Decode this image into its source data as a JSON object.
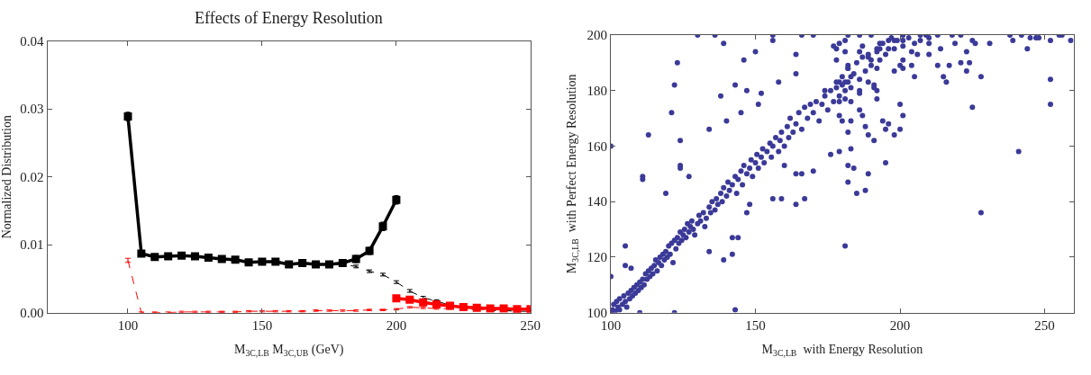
{
  "chart_data": [
    {
      "type": "line",
      "title": "Effects of Energy Resolution",
      "xlabel": "M$_{3C,LB}$ M$_{3C,UB}$ (GeV)",
      "ylabel": "Normalized Distribution",
      "xlim": [
        70,
        250
      ],
      "xticks": [
        100,
        150,
        200,
        250
      ],
      "ylim": [
        0,
        0.04
      ],
      "yticks": [
        {
          "value": 0,
          "label": "0.00"
        },
        0.01,
        0.02,
        0.03,
        0.04
      ],
      "series": [
        {
          "color": "#000000",
          "line_style": "solid",
          "marker": "square",
          "x": [
            100,
            105,
            110,
            115,
            120,
            125,
            130,
            135,
            140,
            145,
            150,
            155,
            160,
            165,
            170,
            175,
            180,
            185,
            190,
            195,
            200
          ],
          "values": [
            0.0289,
            0.0087,
            0.0082,
            0.0083,
            0.0084,
            0.0083,
            0.0081,
            0.0079,
            0.0078,
            0.0074,
            0.0075,
            0.0075,
            0.0071,
            0.0073,
            0.0071,
            0.0071,
            0.0073,
            0.0079,
            0.0091,
            0.0127,
            0.0166
          ],
          "errors": [
            0.0006,
            0.0003,
            0.0003,
            0.0003,
            0.0003,
            0.0003,
            0.0003,
            0.0003,
            0.0003,
            0.0003,
            0.0003,
            0.0003,
            0.0003,
            0.0003,
            0.0003,
            0.0003,
            0.0003,
            0.0005,
            0.0005,
            0.0006,
            0.0006
          ]
        },
        {
          "color": "#000000",
          "line_style": "dashed",
          "x": [
            105,
            110,
            115,
            120,
            125,
            130,
            135,
            140,
            145,
            150,
            155,
            160,
            165,
            170,
            175,
            180,
            185,
            190,
            195,
            200,
            205,
            210,
            215,
            220,
            225,
            230,
            235,
            240,
            245,
            250
          ],
          "values": [
            0.0087,
            0.0082,
            0.0083,
            0.0084,
            0.0083,
            0.0081,
            0.0079,
            0.0078,
            0.0074,
            0.0075,
            0.0075,
            0.0071,
            0.0073,
            0.0071,
            0.0071,
            0.0071,
            0.0068,
            0.0061,
            0.0056,
            0.0045,
            0.0032,
            0.0022,
            0.0017,
            0.0011,
            0.0007,
            0.0004,
            0.0003,
            0.0003,
            0.0002,
            0.0002
          ],
          "errors": [
            0.0002,
            0.0002,
            0.0002,
            0.0002,
            0.0002,
            0.0002,
            0.0002,
            0.0002,
            0.0002,
            0.0002,
            0.0002,
            0.0002,
            0.0002,
            0.0002,
            0.0002,
            0.0002,
            0.0002,
            0.0002,
            0.0002,
            0.0002,
            0.0002,
            0.0002,
            0.0002,
            null,
            null,
            null,
            null,
            null,
            null,
            null
          ]
        },
        {
          "color": "#ff0000",
          "line_style": "dashed",
          "marker": "none",
          "x": [
            100,
            105,
            110,
            115,
            120,
            125,
            130,
            135,
            140,
            145,
            150,
            155,
            160,
            165,
            170,
            175,
            180,
            185,
            190,
            195,
            200,
            205,
            210,
            215,
            220,
            225,
            230,
            235,
            240,
            245,
            250
          ],
          "values": [
            0.0077,
            0,
            0,
            0,
            0.0001,
            0.0001,
            0.0001,
            0.0001,
            0.0001,
            0.0002,
            0.0002,
            0.0002,
            0.0002,
            0.0002,
            0.0003,
            0.0003,
            0.0003,
            0.0003,
            0.0004,
            0.0004,
            0.0005,
            0.0008,
            0.0007,
            0.0006,
            0.0006,
            0.0005,
            0.0005,
            0.0004,
            0.0004,
            0.0004,
            0.0004
          ],
          "errors": [
            0.0003,
            0.0001,
            0.0001,
            0.0001,
            0.0001,
            0.0001,
            0.0001,
            0.0001,
            0.0001,
            0.0001,
            0.0001,
            0.0001,
            0.0001,
            0.0001,
            0.0001,
            0.0001,
            0.0001,
            0.0001,
            0.0001,
            0.0001,
            0.0001,
            0.0001,
            0.0001,
            0.0001,
            0.0001,
            0.0001,
            0.0001,
            0.0001,
            0.0001,
            0.0001,
            0.0001
          ]
        },
        {
          "color": "#ff0000",
          "line_style": "solid",
          "marker": "square",
          "x": [
            200,
            205,
            210,
            215,
            220,
            225,
            230,
            235,
            240,
            245,
            250
          ],
          "values": [
            0.0021,
            0.0019,
            0.0015,
            0.0012,
            0.001,
            0.0008,
            0.0007,
            0.0006,
            0.0006,
            0.0005,
            0.0005
          ]
        }
      ]
    },
    {
      "type": "scatter",
      "xlabel": "M$_{3C,LB}$  with Energy Resolution",
      "ylabel": "M$_{3C,LB}$  with Perfect Energy Resolution",
      "color": "#3b3a98",
      "marker": "circle",
      "xlim": [
        100,
        260
      ],
      "xticks": [
        100,
        150,
        200,
        250
      ],
      "ylim": [
        100,
        200
      ],
      "yticks": [
        100,
        120,
        140,
        160,
        180,
        200
      ],
      "x": [
        100,
        113,
        123,
        122,
        121,
        124,
        124,
        111,
        130,
        136,
        139,
        138,
        143,
        147,
        140,
        145,
        146,
        150,
        134,
        152,
        151,
        156,
        156,
        158,
        164,
        164,
        170,
        166,
        174,
        178,
        180,
        182,
        111,
        105,
        124,
        127,
        119,
        143,
        139,
        142,
        144,
        142,
        134,
        181,
        167,
        164,
        159,
        156,
        170,
        160,
        164,
        166,
        147,
        148,
        100,
        110,
        122,
        100,
        105,
        107,
        228,
        241,
        252,
        252,
        225,
        228,
        223,
        185,
        188,
        189,
        182,
        184,
        182,
        195,
        183,
        179,
        176,
        191,
        195,
        198,
        200,
        201,
        200,
        194,
        196,
        189,
        188,
        183,
        182,
        180,
        192,
        206,
        204,
        205,
        210,
        213,
        217,
        215,
        216,
        221,
        224,
        223,
        225,
        226,
        231,
        244,
        239,
        245,
        247,
        248,
        252,
        259,
        256,
        238,
        242,
        255,
        219,
        218,
        221,
        214,
        210,
        207,
        201,
        201,
        209,
        213,
        204,
        201,
        201,
        200,
        198,
        198,
        196,
        196,
        193,
        192,
        193,
        190,
        186,
        190,
        189,
        186,
        187,
        192,
        191,
        191,
        192,
        189,
        186,
        186,
        186,
        187,
        183,
        181,
        179,
        179,
        178,
        182,
        183,
        181,
        179,
        182,
        182,
        181,
        179,
        181,
        177,
        178,
        100.5,
        101,
        101.5,
        102,
        102.5,
        103,
        103,
        104,
        104.5,
        105,
        105.5,
        106,
        106.5,
        107,
        107.5,
        108,
        108.5,
        109,
        109.5,
        110,
        110.5,
        111,
        111.5,
        112,
        112.5,
        113,
        113.5,
        114,
        114.5,
        115,
        115.5,
        116,
        116.5,
        117,
        117.5,
        118,
        118.5,
        119,
        119.5,
        120,
        120.5,
        121,
        121.5,
        122,
        122.5,
        123,
        123.5,
        124,
        124.5,
        125,
        125.5,
        126,
        126.5,
        127,
        127.5,
        128,
        128.5,
        129,
        130,
        130.5,
        131,
        132,
        132.5,
        133,
        134,
        134.5,
        135,
        136,
        136.5,
        137,
        138,
        138.5,
        139,
        140,
        140.5,
        141,
        142,
        143,
        143.5,
        144,
        145,
        145.5,
        146,
        147,
        148,
        148.5,
        149,
        150,
        150.5,
        151,
        152,
        152.5,
        153,
        154,
        155,
        155.5,
        156,
        157,
        158,
        158.5,
        159,
        160,
        161,
        161.5,
        162,
        163,
        164,
        165,
        166,
        167,
        168,
        169,
        170,
        171,
        172,
        173,
        174,
        175,
        176,
        177,
        178,
        179,
        180,
        181,
        182,
        183,
        184,
        185,
        186,
        187,
        188,
        189,
        190,
        192,
        193,
        194,
        195,
        197,
        198,
        199,
        201,
        203,
        205,
        207,
        210
      ],
      "values": [
        160,
        164,
        190,
        182,
        172,
        162,
        152,
        148,
        200,
        200,
        197,
        178,
        182,
        180,
        169,
        172,
        191,
        194,
        166,
        179,
        175,
        200,
        198,
        183,
        186,
        193,
        200,
        200,
        180,
        195,
        182,
        200,
        149,
        124,
        153,
        149,
        143,
        101,
        119,
        127,
        127,
        121,
        122,
        124,
        141,
        139,
        141,
        141,
        151,
        153,
        150,
        150,
        136,
        139,
        100,
        100,
        100,
        113,
        117,
        116,
        136,
        158,
        175,
        184,
        174,
        185,
        187,
        143,
        144,
        150,
        147,
        152,
        153,
        154,
        159,
        158,
        157,
        162,
        166,
        164,
        166,
        171,
        175,
        169,
        168,
        164,
        167,
        169,
        165,
        169,
        177,
        193,
        194,
        185,
        193,
        189,
        189,
        185,
        183,
        190,
        190,
        194,
        198,
        197,
        197,
        195,
        198,
        199,
        199,
        199,
        198,
        198,
        200,
        200,
        200,
        200,
        197,
        200,
        200,
        195,
        197,
        198,
        200,
        198,
        200,
        200,
        189,
        188,
        191,
        189,
        187,
        198,
        198,
        195,
        195,
        194,
        197,
        200,
        200,
        191,
        192,
        194,
        196,
        188,
        181,
        182,
        180,
        183,
        180,
        179,
        173,
        171,
        176,
        177,
        176,
        171,
        181,
        183,
        185,
        183,
        183,
        189,
        188,
        198,
        197,
        194,
        196,
        191,
        101,
        103,
        100.5,
        104,
        102,
        101,
        105,
        103,
        106,
        104,
        102,
        107,
        105,
        108,
        106,
        109,
        107,
        110,
        108,
        111,
        109,
        112,
        110,
        114,
        112,
        115,
        113,
        116,
        114,
        117,
        119,
        115,
        118,
        120,
        117,
        121,
        119,
        122,
        120,
        124,
        121,
        125,
        118,
        126,
        123,
        127,
        125,
        129,
        126,
        128,
        130,
        127,
        132,
        129,
        131,
        133,
        130,
        128,
        132,
        135,
        133,
        136,
        131,
        134,
        138,
        136,
        140,
        137,
        141,
        139,
        143,
        140,
        145,
        142,
        147,
        144,
        146,
        149,
        143,
        148,
        151,
        146,
        153,
        150,
        152,
        155,
        149,
        154,
        157,
        152,
        156,
        159,
        154,
        158,
        161,
        156,
        160,
        163,
        158,
        162,
        165,
        160,
        167,
        163,
        170,
        165,
        168,
        172,
        166,
        174,
        170,
        175,
        172,
        176,
        169,
        175,
        178,
        173,
        180,
        176,
        183,
        178,
        185,
        180,
        188,
        181,
        186,
        190,
        184,
        192,
        187,
        193,
        189,
        195,
        191,
        197,
        193,
        199,
        195,
        198,
        196,
        199,
        197,
        200,
        199
      ]
    }
  ]
}
